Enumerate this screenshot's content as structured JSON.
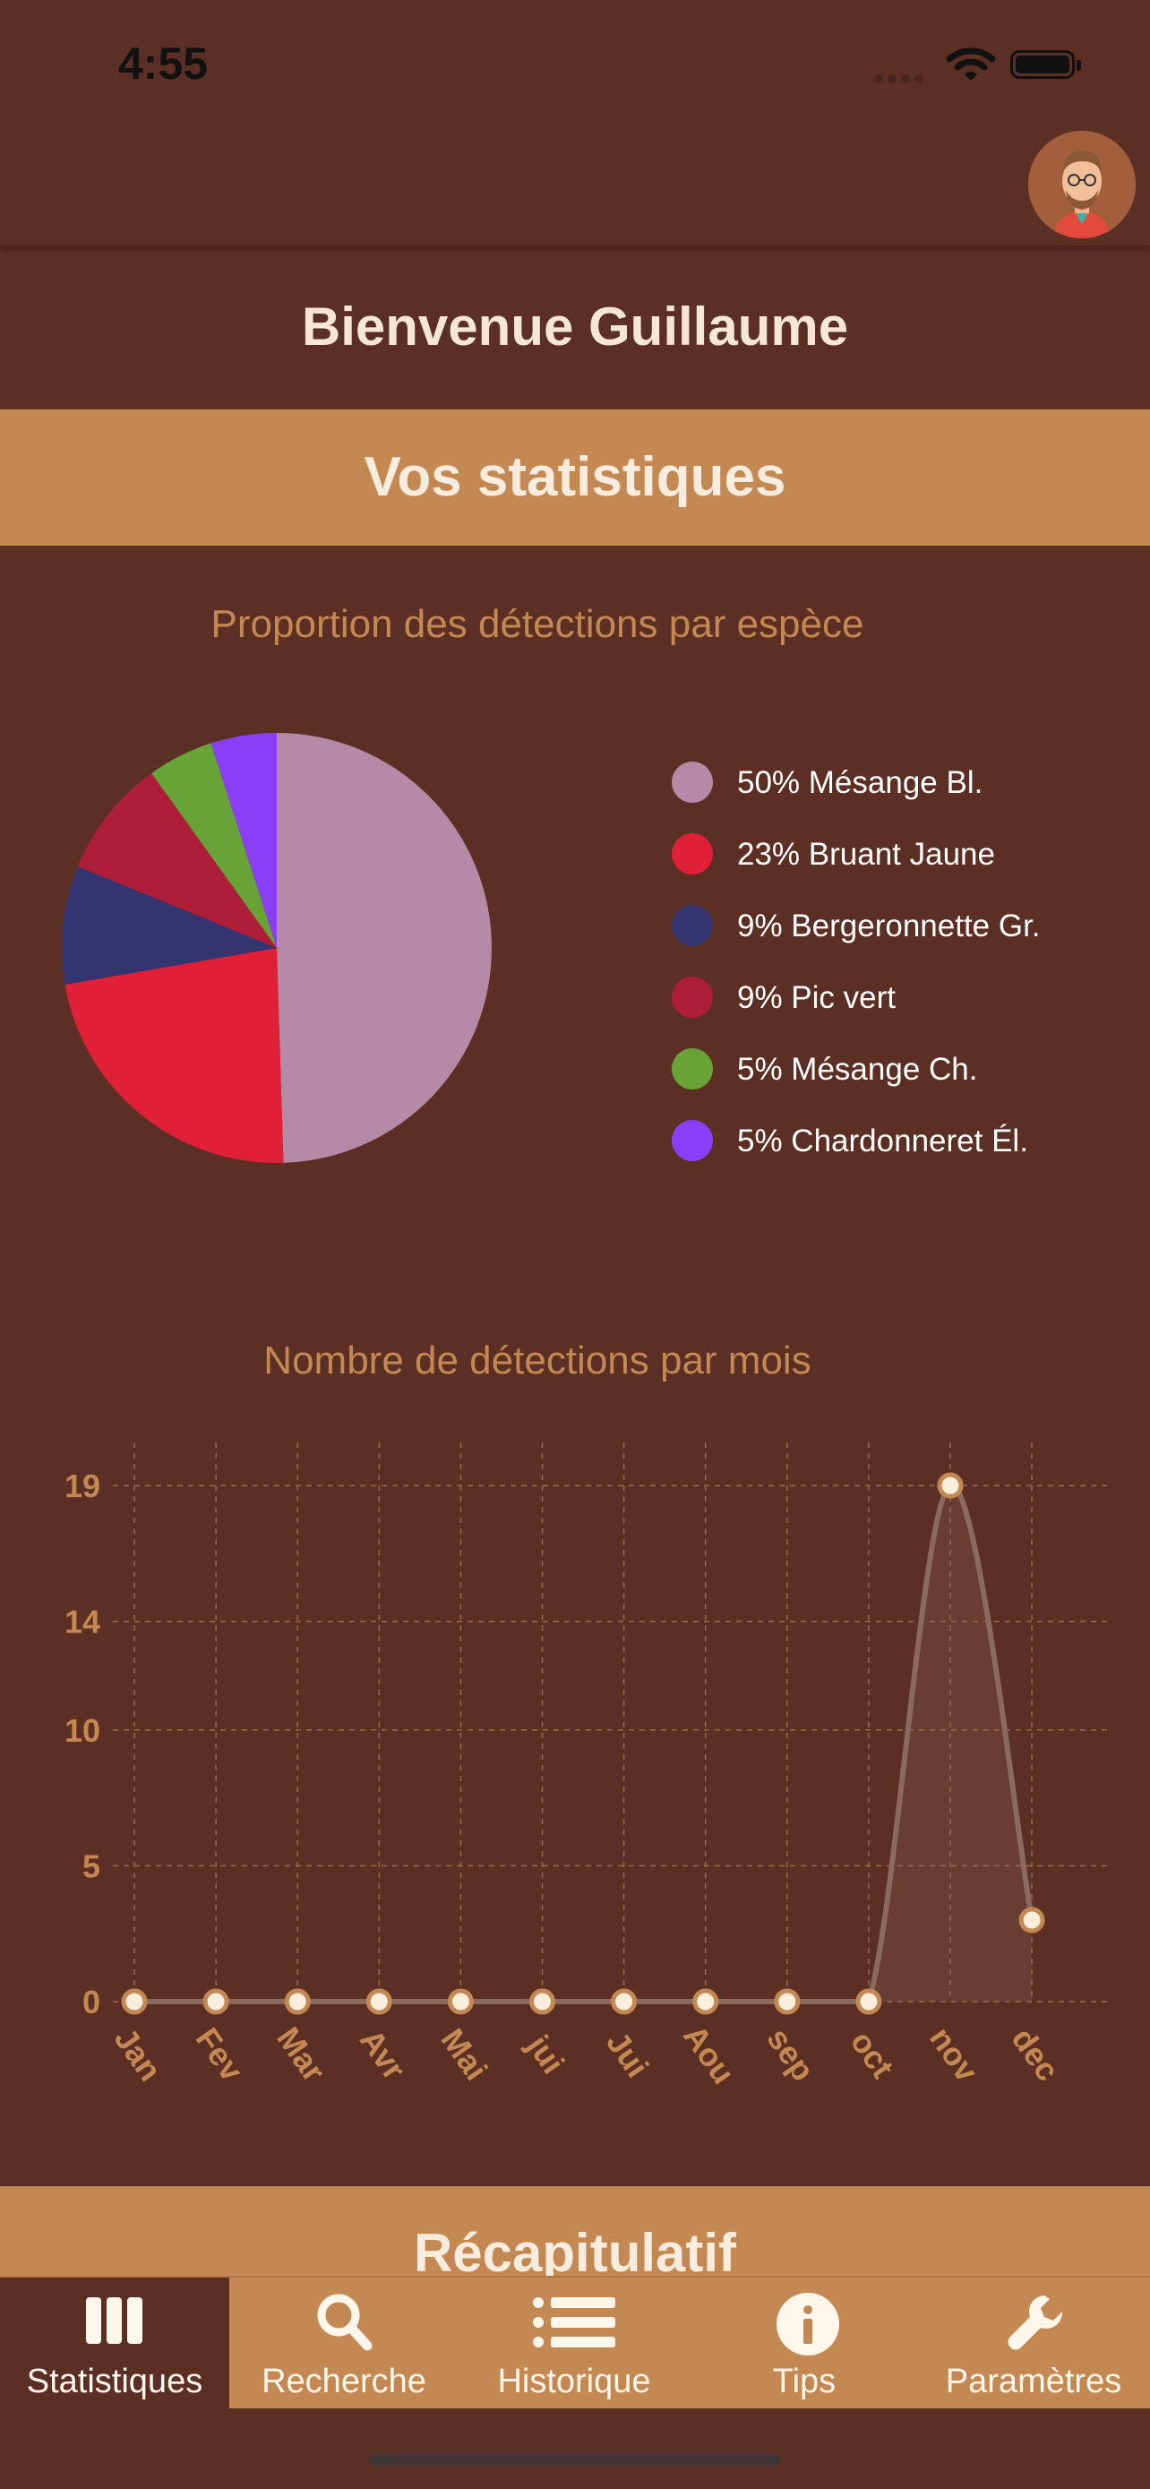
{
  "status_bar": {
    "time": "4:55"
  },
  "header": {
    "welcome": "Bienvenue Guillaume"
  },
  "section_stats": {
    "title": "Vos statistiques"
  },
  "section_recap": {
    "title": "Récapitulatif"
  },
  "chart_data": [
    {
      "type": "pie",
      "title": "Proportion des détections par espèce",
      "legend": "right",
      "slices": [
        {
          "label": "50% Mésange Bl.",
          "value": 50,
          "color": "#b48aa6"
        },
        {
          "label": "23% Bruant Jaune",
          "value": 23,
          "color": "#e02036"
        },
        {
          "label": "9% Bergeronnette Gr.",
          "value": 9,
          "color": "#343470"
        },
        {
          "label": "9% Pic vert",
          "value": 9,
          "color": "#ae1e38"
        },
        {
          "label": "5% Mésange Ch.",
          "value": 5,
          "color": "#67a336"
        },
        {
          "label": "5% Chardonneret Él.",
          "value": 5,
          "color": "#8a3ef6"
        }
      ]
    },
    {
      "type": "area",
      "title": "Nombre de détections par mois",
      "categories": [
        "Jan",
        "Fev",
        "Mar",
        "Avr",
        "Mai",
        "jui",
        "Jui",
        "Aou",
        "sep",
        "oct",
        "nov",
        "dec"
      ],
      "values": [
        0,
        0,
        0,
        0,
        0,
        0,
        0,
        0,
        0,
        0,
        19,
        3
      ],
      "yticks": [
        "0",
        "5",
        "10",
        "14",
        "19"
      ],
      "ylim": [
        0,
        19
      ],
      "grid": true,
      "line_color": "#8a6a5e",
      "axis_label_color": "#c48853"
    }
  ],
  "tabbar": {
    "tabs": [
      {
        "label": "Statistiques",
        "icon": "columns-icon",
        "active": true
      },
      {
        "label": "Recherche",
        "icon": "search-icon",
        "active": false
      },
      {
        "label": "Historique",
        "icon": "list-icon",
        "active": false
      },
      {
        "label": "Tips",
        "icon": "info-icon",
        "active": false
      },
      {
        "label": "Paramètres",
        "icon": "wrench-icon",
        "active": false
      }
    ]
  }
}
